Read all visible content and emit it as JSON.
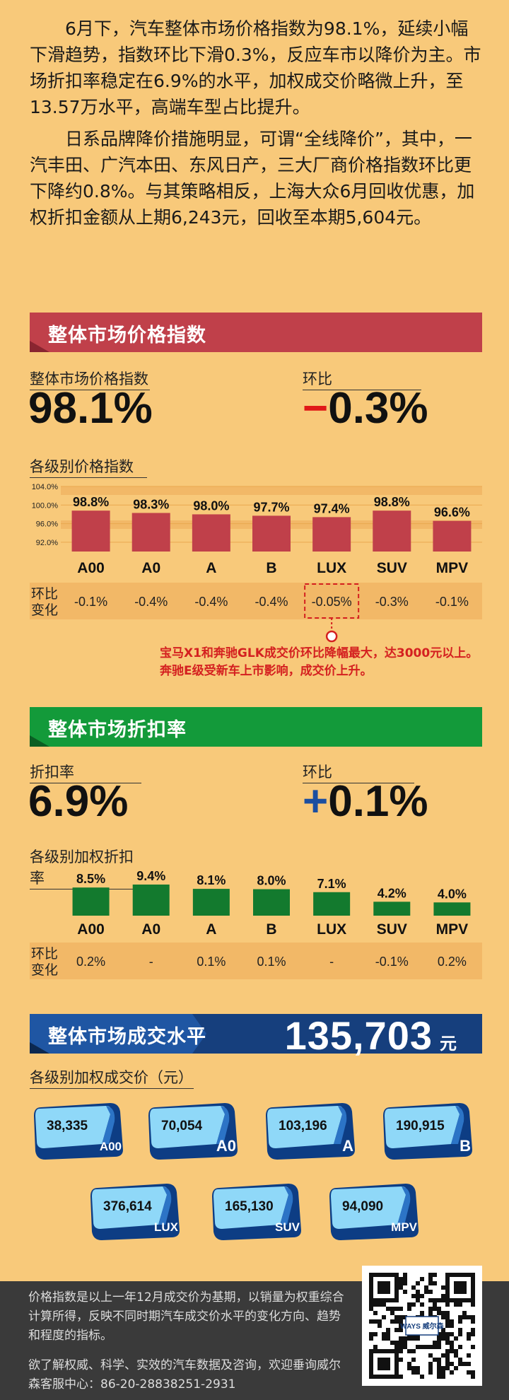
{
  "intro": {
    "p1": "6月下，汽车整体市场价格指数为98.1%，延续小幅下滑趋势，指数环比下滑0.3%，反应车市以降价为主。市场折扣率稳定在6.9%的水平，加权成交价略微上升，至13.57万水平，高端车型占比提升。",
    "p2": "日系品牌降价措施明显，可谓“全线降价”，其中，一汽丰田、广汽本田、东风日产，三大厂商价格指数环比更下降约0.8%。与其策略相反，上海大众6月回收优惠，加权折扣金额从上期6,243元，回收至本期5,604元。"
  },
  "section1": {
    "title": "整体市场价格指数",
    "label_index": "整体市场价格指数",
    "value_index": "98.1%",
    "label_mom": "环比",
    "mom_sign": "−",
    "mom_value": "0.3%",
    "sub_title": "各级别价格指数",
    "row_label_1": "环比",
    "row_label_2": "变化",
    "annotation": "宝马X1和奔驰GLK成交价环比降幅最大，达3000元以上。奔驰E级受新车上市影响，成交价上升。"
  },
  "section2": {
    "title": "整体市场折扣率",
    "label_rate": "折扣率",
    "value_rate": "6.9%",
    "label_mom": "环比",
    "mom_sign": "+",
    "mom_value": "0.1%",
    "sub_title": "各级别加权折扣率",
    "row_label_1": "环比",
    "row_label_2": "变化"
  },
  "section3": {
    "title": "整体市场成交水平",
    "value": "135,703",
    "unit": "元",
    "sub_title": "各级别加权成交价（元）",
    "items": [
      {
        "segment": "A00",
        "value": "38,335"
      },
      {
        "segment": "A0",
        "value": "70,054"
      },
      {
        "segment": "A",
        "value": "103,196"
      },
      {
        "segment": "B",
        "value": "190,915"
      },
      {
        "segment": "LUX",
        "value": "376,614"
      },
      {
        "segment": "SUV",
        "value": "165,130"
      },
      {
        "segment": "MPV",
        "value": "94,090"
      }
    ]
  },
  "footer": {
    "note": "价格指数是以上一年12月成交价为基期，以销量为权重综合计算所得，反映不同时期汽车成交价水平的变化方向、趋势和程度的指标。",
    "contact": "欲了解权威、科学、实效的汽车数据及咨询，欢迎垂询威尔森客服中心：86-20-28838251-2931",
    "qr_logo_text": "WAYS 威尔森"
  },
  "colors": {
    "background": "#f8c97a",
    "red_bar": "#c0404a",
    "green_bar": "#137a2e",
    "blue_banner": "#163f7d",
    "stripe": "#f2b867"
  },
  "chart_data": [
    {
      "type": "bar",
      "categories": [
        "A00",
        "A0",
        "A",
        "B",
        "LUX",
        "SUV",
        "MPV"
      ],
      "values": [
        98.8,
        98.3,
        98.0,
        97.7,
        97.4,
        98.8,
        96.6
      ],
      "value_labels": [
        "98.8%",
        "98.3%",
        "98.0%",
        "97.7%",
        "97.4%",
        "98.8%",
        "96.6%"
      ],
      "yticks": [
        "104.0%",
        "100.0%",
        "96.0%",
        "92.0%"
      ],
      "ylim": [
        90,
        104
      ],
      "mom_change": [
        "-0.1%",
        "-0.4%",
        "-0.4%",
        "-0.4%",
        "-0.05%",
        "-0.3%",
        "-0.1%"
      ],
      "highlight_category": "LUX",
      "grid": true
    },
    {
      "type": "bar",
      "categories": [
        "A00",
        "A0",
        "A",
        "B",
        "LUX",
        "SUV",
        "MPV"
      ],
      "values": [
        8.5,
        9.4,
        8.1,
        8.0,
        7.1,
        4.2,
        4.0
      ],
      "value_labels": [
        "8.5%",
        "9.4%",
        "8.1%",
        "8.0%",
        "7.1%",
        "4.2%",
        "4.0%"
      ],
      "mom_change": [
        "0.2%",
        "-",
        "0.1%",
        "0.1%",
        "-",
        "-0.1%",
        "0.2%"
      ]
    }
  ]
}
